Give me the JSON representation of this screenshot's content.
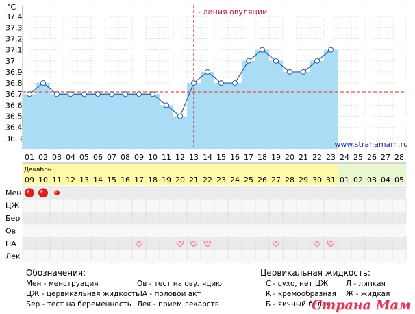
{
  "chart_data": {
    "type": "line",
    "y_unit": "°C",
    "ylim": [
      36.2,
      37.5
    ],
    "yticks": [
      "36.3",
      "36.4",
      "36.5",
      "36.6",
      "36.7",
      "36.8",
      "36.9",
      "37",
      "37.1",
      "37.2",
      "37.3",
      "37.4"
    ],
    "cycle_days": [
      "01",
      "02",
      "03",
      "04",
      "05",
      "06",
      "07",
      "08",
      "09",
      "10",
      "11",
      "12",
      "13",
      "14",
      "15",
      "16",
      "17",
      "18",
      "19",
      "20",
      "21",
      "22",
      "23",
      "24",
      "25",
      "26",
      "27",
      "28"
    ],
    "dates": [
      "09",
      "10",
      "11",
      "12",
      "13",
      "14",
      "15",
      "16",
      "17",
      "18",
      "19",
      "20",
      "21",
      "22",
      "23",
      "24",
      "25",
      "26",
      "27",
      "28",
      "29",
      "30",
      "31",
      "01",
      "02",
      "03",
      "04",
      "05"
    ],
    "month_label": "Декабрь",
    "temperatures": [
      36.7,
      36.8,
      36.7,
      36.7,
      36.7,
      36.7,
      36.7,
      36.7,
      36.7,
      36.7,
      36.6,
      36.5,
      36.8,
      36.9,
      36.8,
      36.8,
      37.0,
      37.1,
      37.0,
      36.9,
      36.9,
      37.0,
      37.1
    ],
    "coverline": 36.72,
    "ovulation_day": 12.5,
    "ovulation_label": "- линия овуляции",
    "site_label": "www.stranamam.ru",
    "colors": {
      "fill": "#aadcf5",
      "line": "#2b5e9e",
      "coverline": "#d9534f",
      "ovulation": "#c2185b",
      "date_bg": "#fff9a8",
      "future_date_bg": "#e8f7d0"
    },
    "rows": [
      "Мен",
      "ЦЖ",
      "Бер",
      "Ов",
      "ПА",
      "Лек"
    ],
    "menstruation": [
      {
        "day": 1,
        "size": "large"
      },
      {
        "day": 2,
        "size": "large"
      },
      {
        "day": 3,
        "size": "small"
      }
    ],
    "intercourse_days": [
      9,
      12,
      13,
      14,
      19,
      22,
      23
    ]
  },
  "legend": {
    "title": "Обозначения:",
    "col1": [
      "Мен - менструация",
      "ЦЖ - цервикальная жидкость",
      "Бер - тест на беременность"
    ],
    "col2": [
      "Ов - тест на овуляцию",
      "ПА - половой акт",
      "Лек - прием лекарств"
    ],
    "cervical_title": "Цервикальная жидкость:",
    "col3": [
      "С - сухо, нет ЦЖ",
      "К - кремообразная",
      "Б - яичный белок"
    ],
    "col4": [
      "Л - липкая",
      "Ж - жидкая"
    ]
  },
  "watermark": "Страна Мам"
}
